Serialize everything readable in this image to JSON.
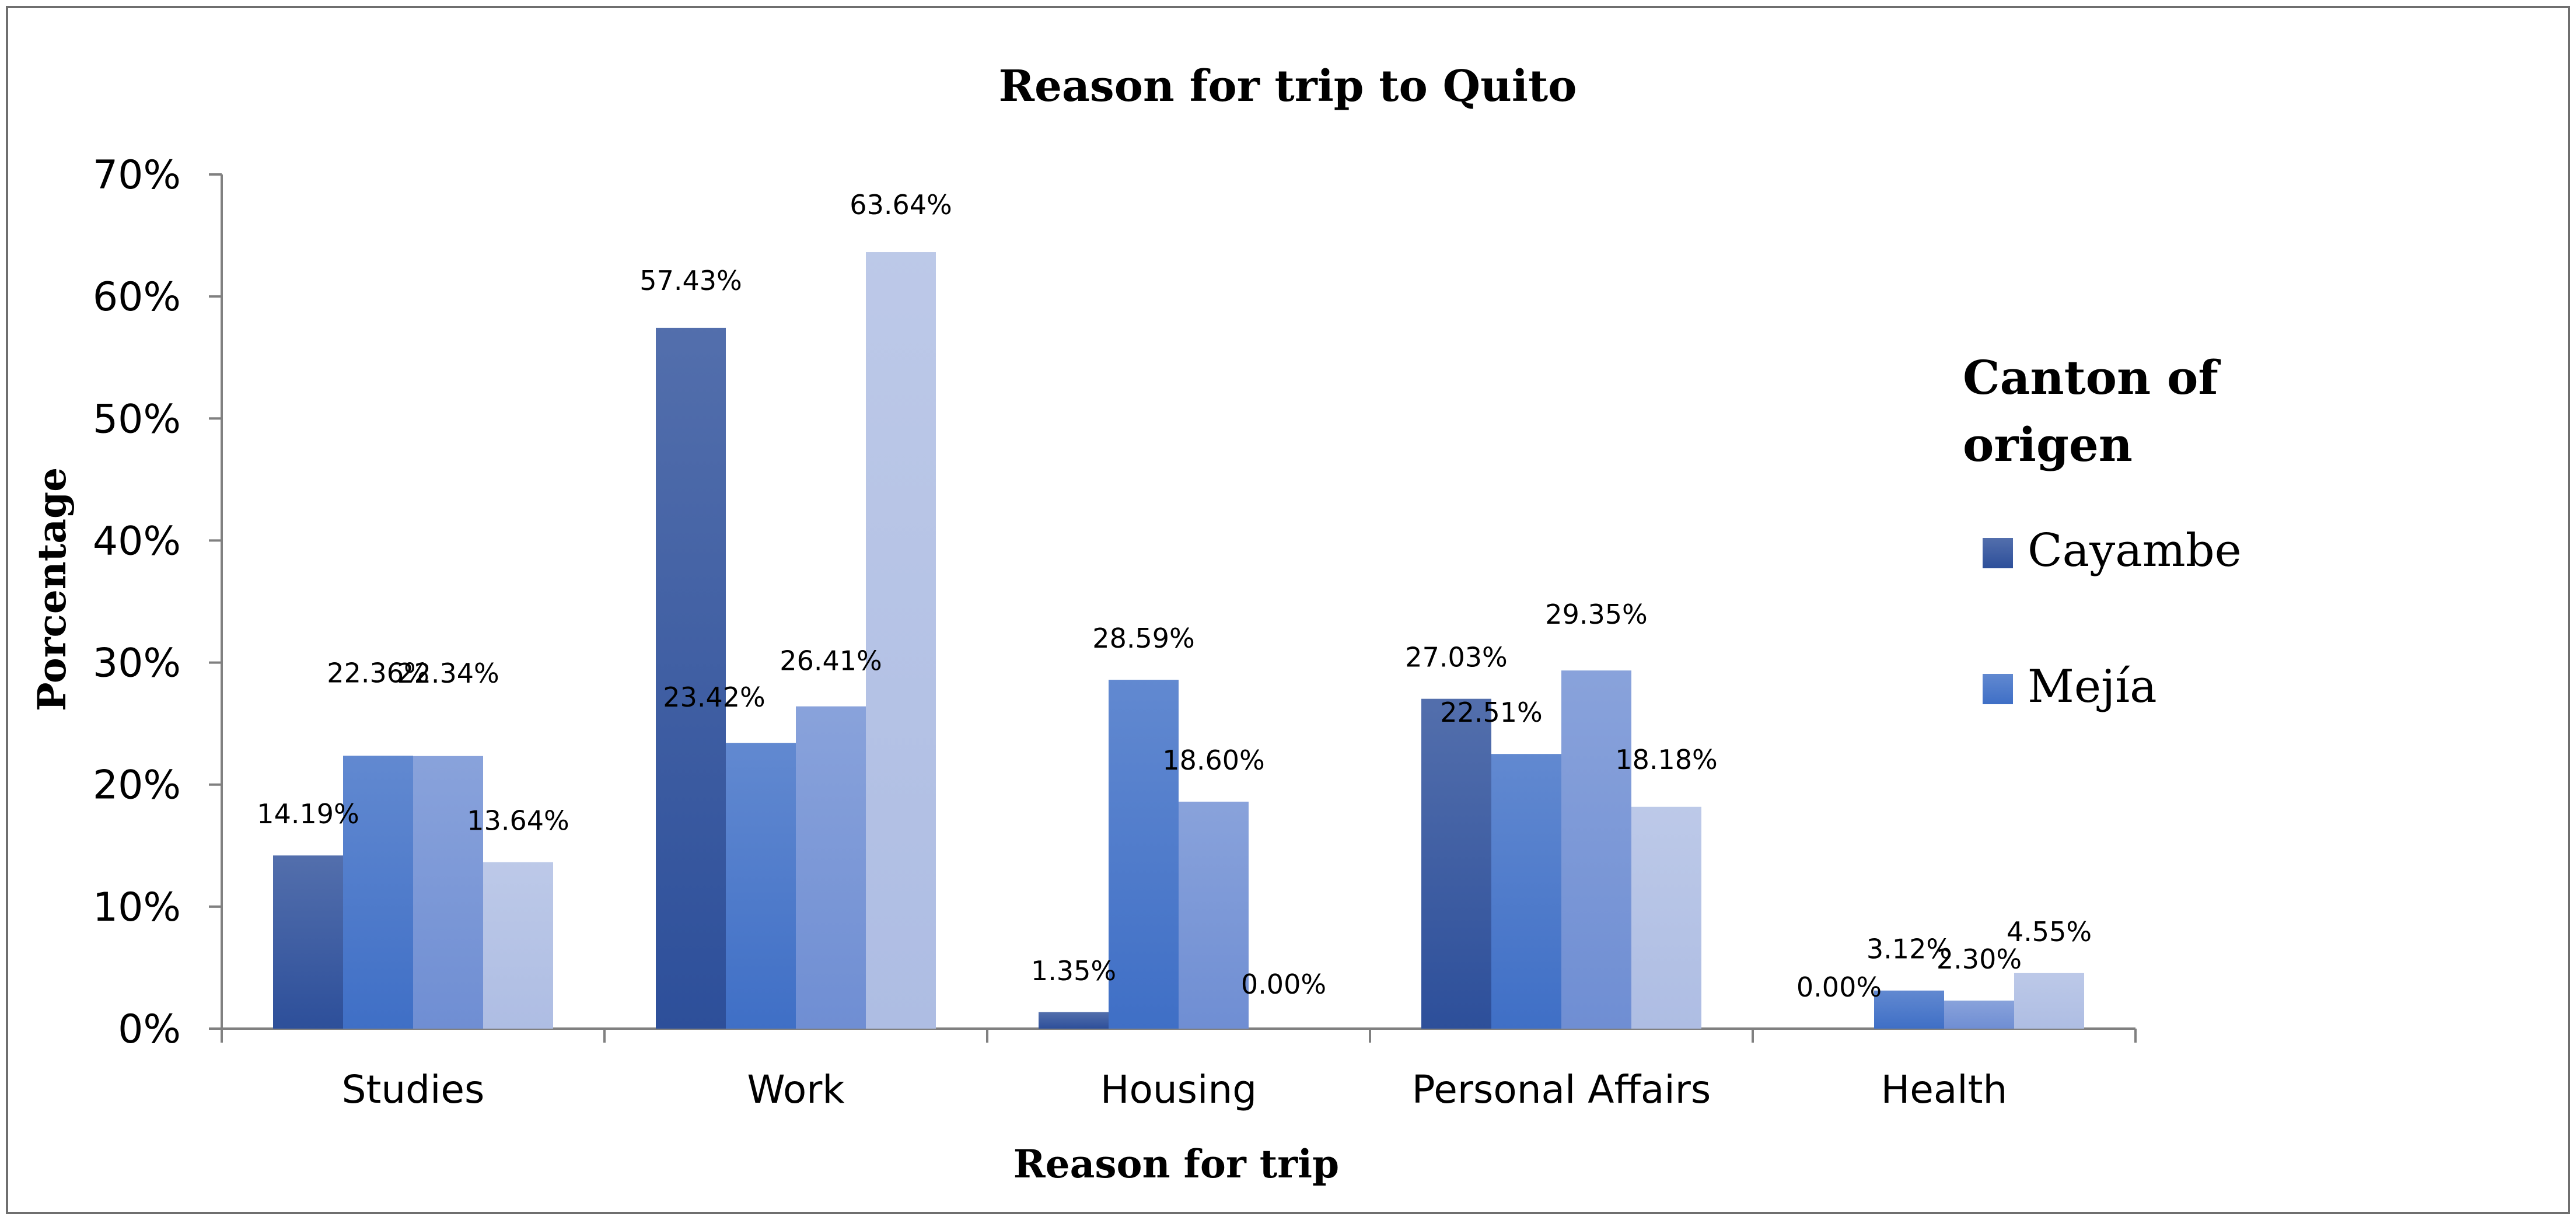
{
  "chart_data": {
    "type": "bar",
    "title": "Reason for trip to Quito",
    "xlabel": "Reason for trip",
    "ylabel": "Porcentage",
    "ylim": [
      0,
      70
    ],
    "yticks": [
      "0%",
      "10%",
      "20%",
      "30%",
      "40%",
      "50%",
      "60%",
      "70%"
    ],
    "categories": [
      "Studies",
      "Work",
      "Housing",
      "Personal Affairs",
      "Health"
    ],
    "legend_title": "Canton of origen",
    "legend_position": "right",
    "series": [
      {
        "name": "Cayambe",
        "color": "#2d4f9a",
        "values": [
          14.19,
          57.43,
          1.35,
          27.03,
          0.0
        ],
        "labels": [
          "14.19%",
          "57.43%",
          "1.35%",
          "27.03%",
          "0.00%"
        ]
      },
      {
        "name": "Mejía",
        "color": "#3f6fc6",
        "values": [
          22.36,
          23.42,
          28.59,
          22.51,
          3.12
        ],
        "labels": [
          "22.36%",
          "23.42%",
          "28.59%",
          "22.51%",
          "3.12%"
        ]
      },
      {
        "color": "#6f8ed3",
        "values": [
          22.34,
          26.41,
          18.6,
          29.35,
          2.3
        ],
        "labels": [
          "22.34%",
          "26.41%",
          "18.60%",
          "29.35%",
          "2.30%"
        ]
      },
      {
        "color": "#aebde3",
        "values": [
          13.64,
          63.64,
          0.0,
          18.18,
          4.55
        ],
        "labels": [
          "13.64%",
          "63.64%",
          "0.00%",
          "18.18%",
          "4.55%"
        ]
      }
    ],
    "grid": false
  }
}
